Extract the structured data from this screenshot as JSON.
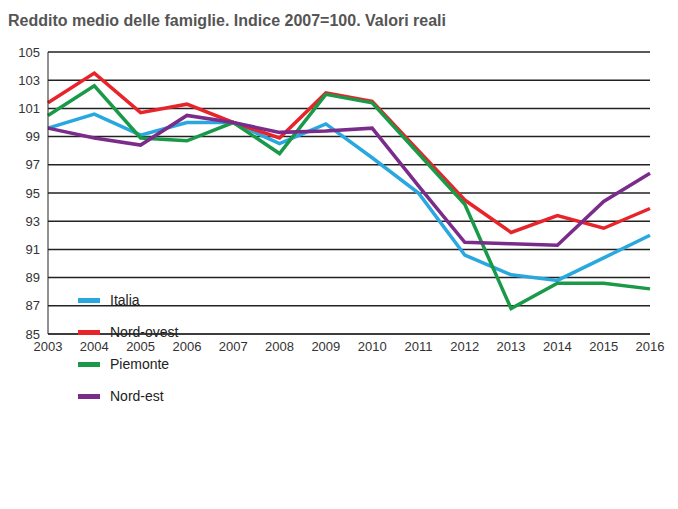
{
  "chart_data": {
    "type": "line",
    "title": "Reddito medio delle famiglie. Indice 2007=100. Valori reali",
    "categories": [
      "2003",
      "2004",
      "2005",
      "2006",
      "2007",
      "2008",
      "2009",
      "2010",
      "2011",
      "2012",
      "2013",
      "2014",
      "2015",
      "2016"
    ],
    "series": [
      {
        "name": "Italia",
        "color": "#29a8e0",
        "values": [
          99.6,
          100.6,
          99.1,
          100.0,
          100,
          98.5,
          99.9,
          97.5,
          95.0,
          90.6,
          89.2,
          88.8,
          90.4,
          92.0
        ]
      },
      {
        "name": "Nord-ovest",
        "color": "#e8232a",
        "values": [
          101.4,
          103.5,
          100.7,
          101.3,
          100,
          98.9,
          102.1,
          101.5,
          98.0,
          94.5,
          92.2,
          93.4,
          92.5,
          93.9
        ]
      },
      {
        "name": "Piemonte",
        "color": "#1a9a48",
        "values": [
          100.5,
          102.6,
          98.9,
          98.7,
          100,
          97.8,
          102.0,
          101.4,
          97.8,
          94.2,
          86.8,
          88.6,
          88.6,
          88.2
        ]
      },
      {
        "name": "Nord-est",
        "color": "#7b2c8b",
        "values": [
          99.6,
          98.9,
          98.4,
          100.5,
          100,
          99.3,
          99.4,
          99.6,
          95.5,
          91.5,
          91.4,
          91.3,
          94.4,
          96.4
        ]
      }
    ],
    "ylim": [
      85,
      105
    ],
    "yticks": [
      85,
      87,
      89,
      91,
      93,
      95,
      97,
      99,
      101,
      103,
      105
    ],
    "grid": true,
    "legend": "left"
  }
}
